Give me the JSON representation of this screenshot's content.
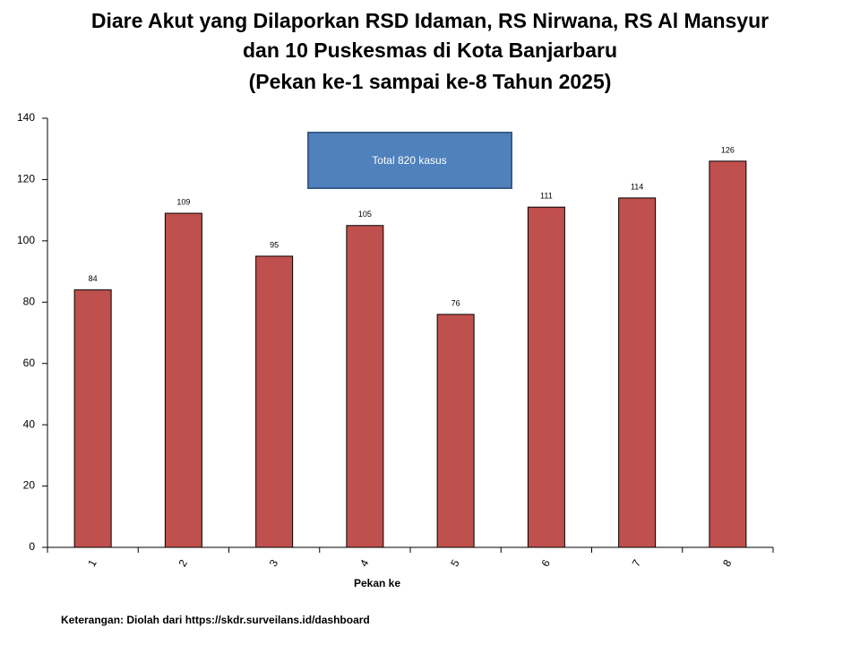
{
  "chart_data": {
    "type": "bar",
    "title": [
      "Diare Akut yang Dilaporkan RSD Idaman, RS Nirwana, RS Al Mansyur",
      "dan 10 Puskesmas di Kota Banjarbaru",
      "(Pekan ke-1 sampai ke-8 Tahun 2025)"
    ],
    "x_label": "Pekan ke",
    "categories": [
      "1",
      "2",
      "3",
      "4",
      "5",
      "6",
      "7",
      "8"
    ],
    "values": [
      84,
      109,
      95,
      105,
      76,
      111,
      114,
      126
    ],
    "color": "#c0504d",
    "ylim": [
      0,
      140
    ],
    "yticks": [
      0,
      20,
      40,
      60,
      80,
      100,
      120,
      140
    ],
    "annotation": "Total 820 kasus",
    "footnote": "Keterangan: Diolah dari https://skdr.surveilans.id/dashboard"
  }
}
